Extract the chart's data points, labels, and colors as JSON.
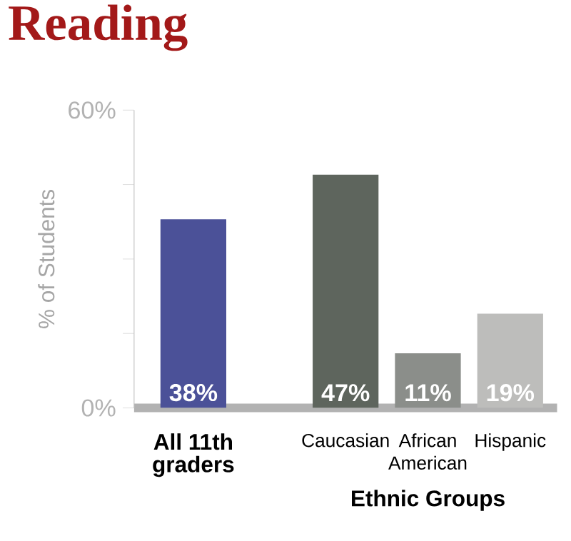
{
  "chart_data": {
    "type": "bar",
    "title": "Reading",
    "ylabel": "% of Students",
    "xlabel": "Ethnic Groups",
    "categories": [
      "All 11th graders",
      "Caucasian",
      "African American",
      "Hispanic"
    ],
    "values": [
      38,
      47,
      11,
      19
    ],
    "colors": [
      "#4b5198",
      "#5e655d",
      "#8b8e8a",
      "#bdbdbb"
    ],
    "value_labels": [
      "38%",
      "47%",
      "11%",
      "19%"
    ],
    "ylim": [
      0,
      60
    ],
    "yticks": [
      {
        "value": 0,
        "label": "0%"
      },
      {
        "value": 15,
        "label": null
      },
      {
        "value": 30,
        "label": null
      },
      {
        "value": 45,
        "label": null
      },
      {
        "value": 60,
        "label": "60%"
      }
    ],
    "grid": false
  }
}
